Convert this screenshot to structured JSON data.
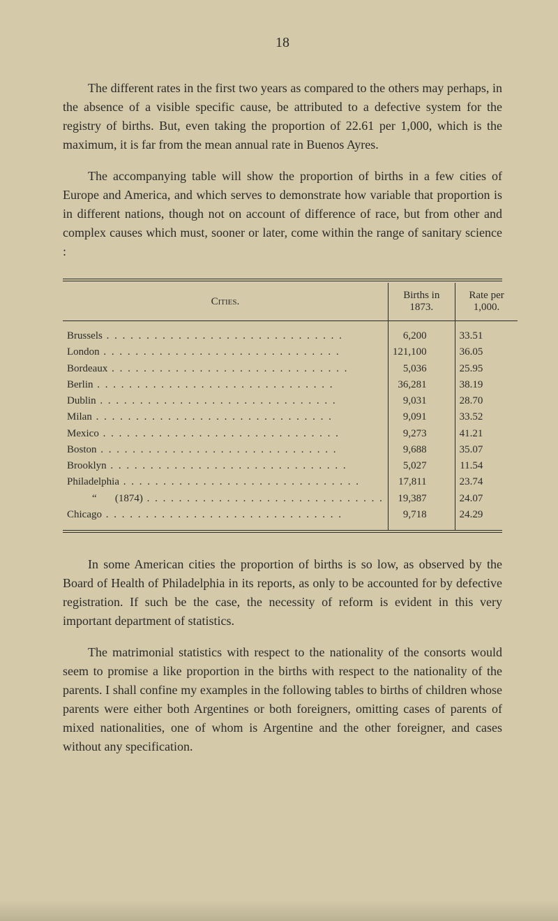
{
  "page_number": "18",
  "paragraph1": "The different rates in the first two years as compared to the others may perhaps, in the absence of a visible specific cause, be attributed to a defective system for the registry of births. But, even taking the proportion of 22.61 per 1,000, which is the maximum, it is far from the mean annual rate in Buenos Ayres.",
  "paragraph2": "The accompanying table will show the proportion of births in a few cities of Europe and America, and which serves to demonstrate how variable that proportion is in different nations, though not on account of difference of race, but from other and complex causes which must, sooner or later, come within the range of sanitary science :",
  "table": {
    "headers": {
      "cities": "Cities.",
      "births": "Births in 1873.",
      "rate": "Rate per 1,000."
    },
    "rows": [
      {
        "city": "Brussels",
        "births": "6,200",
        "rate": "33.51"
      },
      {
        "city": "London",
        "births": "121,100",
        "rate": "36.05"
      },
      {
        "city": "Bordeaux",
        "births": "5,036",
        "rate": "25.95"
      },
      {
        "city": "Berlin",
        "births": "36,281",
        "rate": "38.19"
      },
      {
        "city": "Dublin",
        "births": "9,031",
        "rate": "28.70"
      },
      {
        "city": "Milan",
        "births": "9,091",
        "rate": "33.52"
      },
      {
        "city": "Mexico",
        "births": "9,273",
        "rate": "41.21"
      },
      {
        "city": "Boston",
        "births": "9,688",
        "rate": "35.07"
      },
      {
        "city": "Brooklyn",
        "births": "5,027",
        "rate": "11.54"
      },
      {
        "city": "Philadelphia",
        "births": "17,811",
        "rate": "23.74"
      },
      {
        "city": "“       (1874)",
        "births": "19,387",
        "rate": "24.07",
        "indent": true
      },
      {
        "city": "Chicago",
        "births": "9,718",
        "rate": "24.29"
      }
    ]
  },
  "paragraph3": "In some American cities the proportion of births is so low, as observed by the Board of Health of Philadelphia in its reports, as only to be accounted for by defective registration. If such be the case, the necessity of reform is evident in this very important department of statistics.",
  "paragraph4": "The matrimonial statistics with respect to the nationality of the consorts would seem to promise a like proportion in the births with respect to the nationality of the parents. I shall confine my examples in the following tables to births of children whose parents were either both Argentines or both foreigners, omitting cases of parents of mixed nationalities, one of whom is Argentine and the other foreigner, and cases without any specification."
}
